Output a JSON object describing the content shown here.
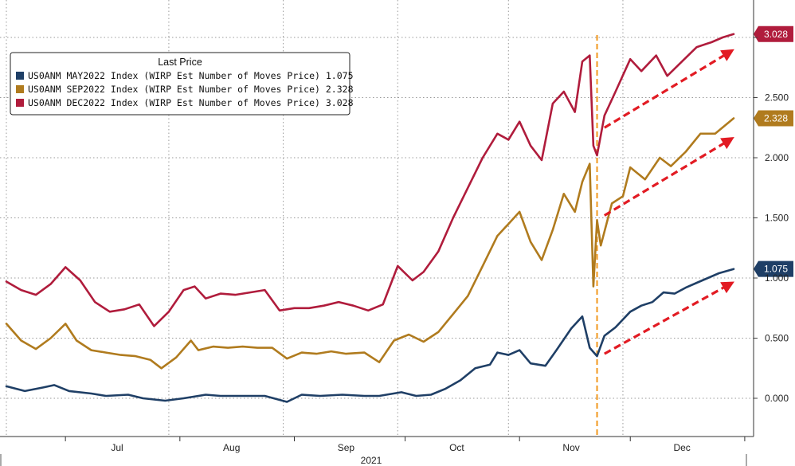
{
  "chart_data": {
    "type": "line",
    "legend": {
      "title": "Last Price",
      "placement": "top-left"
    },
    "x_axis": {
      "months": [
        "Jul",
        "Aug",
        "Sep",
        "Oct",
        "Nov",
        "Dec"
      ],
      "year": "2021",
      "start": "2021-06-15",
      "end": "2021-12-29"
    },
    "y_axis": {
      "side": "right",
      "ylim": [
        -0.3,
        3.3
      ],
      "ticks": [
        "0.000",
        "0.500",
        "1.000",
        "1.500",
        "2.000",
        "2.500"
      ],
      "grid": true
    },
    "event_marker": {
      "date": "2021-11-22",
      "color": "#f2a030"
    },
    "series": [
      {
        "name": "US0ANM MAY2022 Index (WIRP Est Number of Moves Price) 1.075",
        "color": "#1f3f66",
        "last_value": "1.075",
        "points": [
          [
            "2021-06-15",
            0.1
          ],
          [
            "2021-06-20",
            0.06
          ],
          [
            "2021-06-25",
            0.09
          ],
          [
            "2021-06-28",
            0.11
          ],
          [
            "2021-07-02",
            0.06
          ],
          [
            "2021-07-08",
            0.04
          ],
          [
            "2021-07-12",
            0.02
          ],
          [
            "2021-07-18",
            0.03
          ],
          [
            "2021-07-22",
            0.0
          ],
          [
            "2021-07-28",
            -0.02
          ],
          [
            "2021-08-02",
            0.0
          ],
          [
            "2021-08-08",
            0.03
          ],
          [
            "2021-08-12",
            0.02
          ],
          [
            "2021-08-18",
            0.02
          ],
          [
            "2021-08-24",
            0.02
          ],
          [
            "2021-08-30",
            -0.03
          ],
          [
            "2021-09-03",
            0.03
          ],
          [
            "2021-09-08",
            0.02
          ],
          [
            "2021-09-14",
            0.03
          ],
          [
            "2021-09-20",
            0.02
          ],
          [
            "2021-09-24",
            0.02
          ],
          [
            "2021-09-30",
            0.05
          ],
          [
            "2021-10-04",
            0.02
          ],
          [
            "2021-10-08",
            0.03
          ],
          [
            "2021-10-12",
            0.08
          ],
          [
            "2021-10-16",
            0.15
          ],
          [
            "2021-10-20",
            0.25
          ],
          [
            "2021-10-24",
            0.28
          ],
          [
            "2021-10-26",
            0.38
          ],
          [
            "2021-10-29",
            0.36
          ],
          [
            "2021-11-01",
            0.4
          ],
          [
            "2021-11-04",
            0.29
          ],
          [
            "2021-11-08",
            0.27
          ],
          [
            "2021-11-11",
            0.4
          ],
          [
            "2021-11-15",
            0.58
          ],
          [
            "2021-11-18",
            0.68
          ],
          [
            "2021-11-20",
            0.42
          ],
          [
            "2021-11-22",
            0.35
          ],
          [
            "2021-11-24",
            0.52
          ],
          [
            "2021-11-27",
            0.59
          ],
          [
            "2021-12-01",
            0.72
          ],
          [
            "2021-12-04",
            0.77
          ],
          [
            "2021-12-07",
            0.8
          ],
          [
            "2021-12-10",
            0.88
          ],
          [
            "2021-12-13",
            0.87
          ],
          [
            "2021-12-16",
            0.92
          ],
          [
            "2021-12-19",
            0.96
          ],
          [
            "2021-12-22",
            1.0
          ],
          [
            "2021-12-25",
            1.04
          ],
          [
            "2021-12-29",
            1.075
          ]
        ]
      },
      {
        "name": "US0ANM SEP2022 Index (WIRP Est Number of Moves Price) 2.328",
        "color": "#b07b1e",
        "last_value": "2.328",
        "points": [
          [
            "2021-06-15",
            0.62
          ],
          [
            "2021-06-19",
            0.48
          ],
          [
            "2021-06-23",
            0.41
          ],
          [
            "2021-06-27",
            0.5
          ],
          [
            "2021-07-01",
            0.62
          ],
          [
            "2021-07-04",
            0.48
          ],
          [
            "2021-07-08",
            0.4
          ],
          [
            "2021-07-12",
            0.38
          ],
          [
            "2021-07-16",
            0.36
          ],
          [
            "2021-07-20",
            0.35
          ],
          [
            "2021-07-24",
            0.32
          ],
          [
            "2021-07-27",
            0.25
          ],
          [
            "2021-07-31",
            0.34
          ],
          [
            "2021-08-04",
            0.48
          ],
          [
            "2021-08-06",
            0.4
          ],
          [
            "2021-08-10",
            0.43
          ],
          [
            "2021-08-14",
            0.42
          ],
          [
            "2021-08-18",
            0.43
          ],
          [
            "2021-08-22",
            0.42
          ],
          [
            "2021-08-26",
            0.42
          ],
          [
            "2021-08-30",
            0.33
          ],
          [
            "2021-09-03",
            0.38
          ],
          [
            "2021-09-07",
            0.37
          ],
          [
            "2021-09-11",
            0.39
          ],
          [
            "2021-09-15",
            0.37
          ],
          [
            "2021-09-20",
            0.38
          ],
          [
            "2021-09-24",
            0.3
          ],
          [
            "2021-09-28",
            0.48
          ],
          [
            "2021-10-02",
            0.53
          ],
          [
            "2021-10-06",
            0.47
          ],
          [
            "2021-10-10",
            0.55
          ],
          [
            "2021-10-14",
            0.7
          ],
          [
            "2021-10-18",
            0.85
          ],
          [
            "2021-10-22",
            1.1
          ],
          [
            "2021-10-26",
            1.35
          ],
          [
            "2021-10-29",
            1.45
          ],
          [
            "2021-11-01",
            1.55
          ],
          [
            "2021-11-04",
            1.3
          ],
          [
            "2021-11-07",
            1.15
          ],
          [
            "2021-11-10",
            1.4
          ],
          [
            "2021-11-13",
            1.7
          ],
          [
            "2021-11-16",
            1.55
          ],
          [
            "2021-11-18",
            1.8
          ],
          [
            "2021-11-20",
            1.95
          ],
          [
            "2021-11-21",
            0.93
          ],
          [
            "2021-11-22",
            1.48
          ],
          [
            "2021-11-23",
            1.27
          ],
          [
            "2021-11-26",
            1.62
          ],
          [
            "2021-11-29",
            1.68
          ],
          [
            "2021-12-01",
            1.92
          ],
          [
            "2021-12-05",
            1.82
          ],
          [
            "2021-12-09",
            2.0
          ],
          [
            "2021-12-12",
            1.93
          ],
          [
            "2021-12-16",
            2.05
          ],
          [
            "2021-12-20",
            2.2
          ],
          [
            "2021-12-24",
            2.2
          ],
          [
            "2021-12-29",
            2.328
          ]
        ]
      },
      {
        "name": "US0ANM DEC2022 Index (WIRP Est Number of Moves Price) 3.028",
        "color": "#b01c3c",
        "last_value": "3.028",
        "points": [
          [
            "2021-06-15",
            0.97
          ],
          [
            "2021-06-19",
            0.9
          ],
          [
            "2021-06-23",
            0.86
          ],
          [
            "2021-06-27",
            0.95
          ],
          [
            "2021-07-01",
            1.09
          ],
          [
            "2021-07-05",
            0.98
          ],
          [
            "2021-07-09",
            0.8
          ],
          [
            "2021-07-13",
            0.72
          ],
          [
            "2021-07-17",
            0.74
          ],
          [
            "2021-07-21",
            0.78
          ],
          [
            "2021-07-25",
            0.6
          ],
          [
            "2021-07-29",
            0.72
          ],
          [
            "2021-08-02",
            0.9
          ],
          [
            "2021-08-05",
            0.93
          ],
          [
            "2021-08-08",
            0.83
          ],
          [
            "2021-08-12",
            0.87
          ],
          [
            "2021-08-16",
            0.86
          ],
          [
            "2021-08-20",
            0.88
          ],
          [
            "2021-08-24",
            0.9
          ],
          [
            "2021-08-28",
            0.73
          ],
          [
            "2021-09-01",
            0.75
          ],
          [
            "2021-09-05",
            0.75
          ],
          [
            "2021-09-09",
            0.77
          ],
          [
            "2021-09-13",
            0.8
          ],
          [
            "2021-09-17",
            0.77
          ],
          [
            "2021-09-21",
            0.73
          ],
          [
            "2021-09-25",
            0.78
          ],
          [
            "2021-09-29",
            1.1
          ],
          [
            "2021-10-03",
            0.98
          ],
          [
            "2021-10-06",
            1.05
          ],
          [
            "2021-10-10",
            1.22
          ],
          [
            "2021-10-14",
            1.5
          ],
          [
            "2021-10-18",
            1.75
          ],
          [
            "2021-10-22",
            2.0
          ],
          [
            "2021-10-26",
            2.2
          ],
          [
            "2021-10-29",
            2.15
          ],
          [
            "2021-11-01",
            2.3
          ],
          [
            "2021-11-04",
            2.1
          ],
          [
            "2021-11-07",
            1.98
          ],
          [
            "2021-11-10",
            2.45
          ],
          [
            "2021-11-13",
            2.55
          ],
          [
            "2021-11-16",
            2.38
          ],
          [
            "2021-11-18",
            2.8
          ],
          [
            "2021-11-20",
            2.85
          ],
          [
            "2021-11-21",
            2.1
          ],
          [
            "2021-11-22",
            2.02
          ],
          [
            "2021-11-24",
            2.35
          ],
          [
            "2021-11-27",
            2.55
          ],
          [
            "2021-12-01",
            2.82
          ],
          [
            "2021-12-04",
            2.72
          ],
          [
            "2021-12-08",
            2.85
          ],
          [
            "2021-12-11",
            2.68
          ],
          [
            "2021-12-15",
            2.8
          ],
          [
            "2021-12-19",
            2.92
          ],
          [
            "2021-12-23",
            2.96
          ],
          [
            "2021-12-26",
            3.0
          ],
          [
            "2021-12-29",
            3.028
          ]
        ]
      }
    ],
    "trend_arrows": [
      {
        "from": [
          "2021-11-24",
          0.37
        ],
        "to": [
          "2021-12-28",
          0.95
        ]
      },
      {
        "from": [
          "2021-11-24",
          1.52
        ],
        "to": [
          "2021-12-28",
          2.15
        ]
      },
      {
        "from": [
          "2021-11-24",
          2.25
        ],
        "to": [
          "2021-12-28",
          2.88
        ]
      }
    ]
  }
}
